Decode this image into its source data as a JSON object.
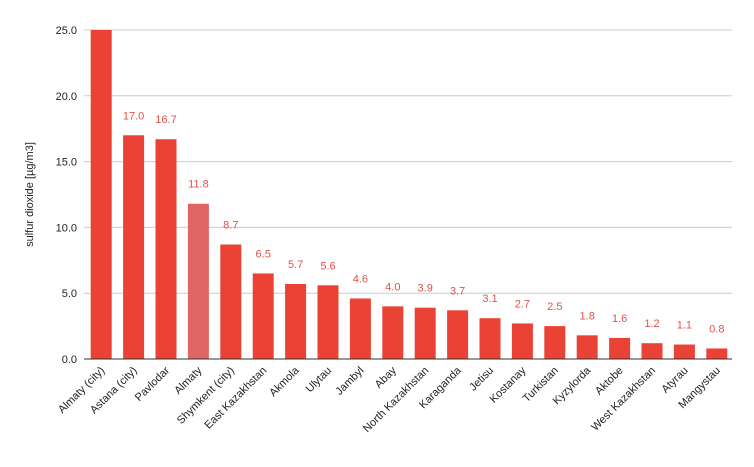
{
  "chart_data": {
    "type": "bar",
    "title": "",
    "xlabel": "",
    "ylabel": "sulfur dioxide [µg/m3]",
    "ylim": [
      0,
      25
    ],
    "yticks": [
      "0.0",
      "5.0",
      "10.0",
      "15.0",
      "20.0",
      "25.0"
    ],
    "grid": true,
    "legend": "none",
    "colors": {
      "bar": "#ea4335",
      "highlight": "#e06666",
      "label": "#e0524a"
    },
    "categories": [
      "Almaty (city)",
      "Astana (city)",
      "Pavlodar",
      "Almaty",
      "Shymkent (city)",
      "East Kazakhstan",
      "Akmola",
      "Ulytau",
      "Jambyl",
      "Abay",
      "North Kazakhstan",
      "Karaganda",
      "Jetisu",
      "Kostanay",
      "Turkistan",
      "Kyzylorda",
      "Aktobe",
      "West Kazakhstan",
      "Atyrau",
      "Mangystau"
    ],
    "values": [
      25.0,
      17.0,
      16.7,
      11.8,
      8.7,
      6.5,
      5.7,
      5.6,
      4.6,
      4.0,
      3.9,
      3.7,
      3.1,
      2.7,
      2.5,
      1.8,
      1.6,
      1.2,
      1.1,
      0.8
    ],
    "data_labels": [
      "",
      "17.0",
      "16.7",
      "11.8",
      "8.7",
      "6.5",
      "5.7",
      "5.6",
      "4.6",
      "4.0",
      "3.9",
      "3.7",
      "3.1",
      "2.7",
      "2.5",
      "1.8",
      "1.6",
      "1.2",
      "1.1",
      "0.8"
    ],
    "highlighted": [
      "Almaty"
    ]
  }
}
